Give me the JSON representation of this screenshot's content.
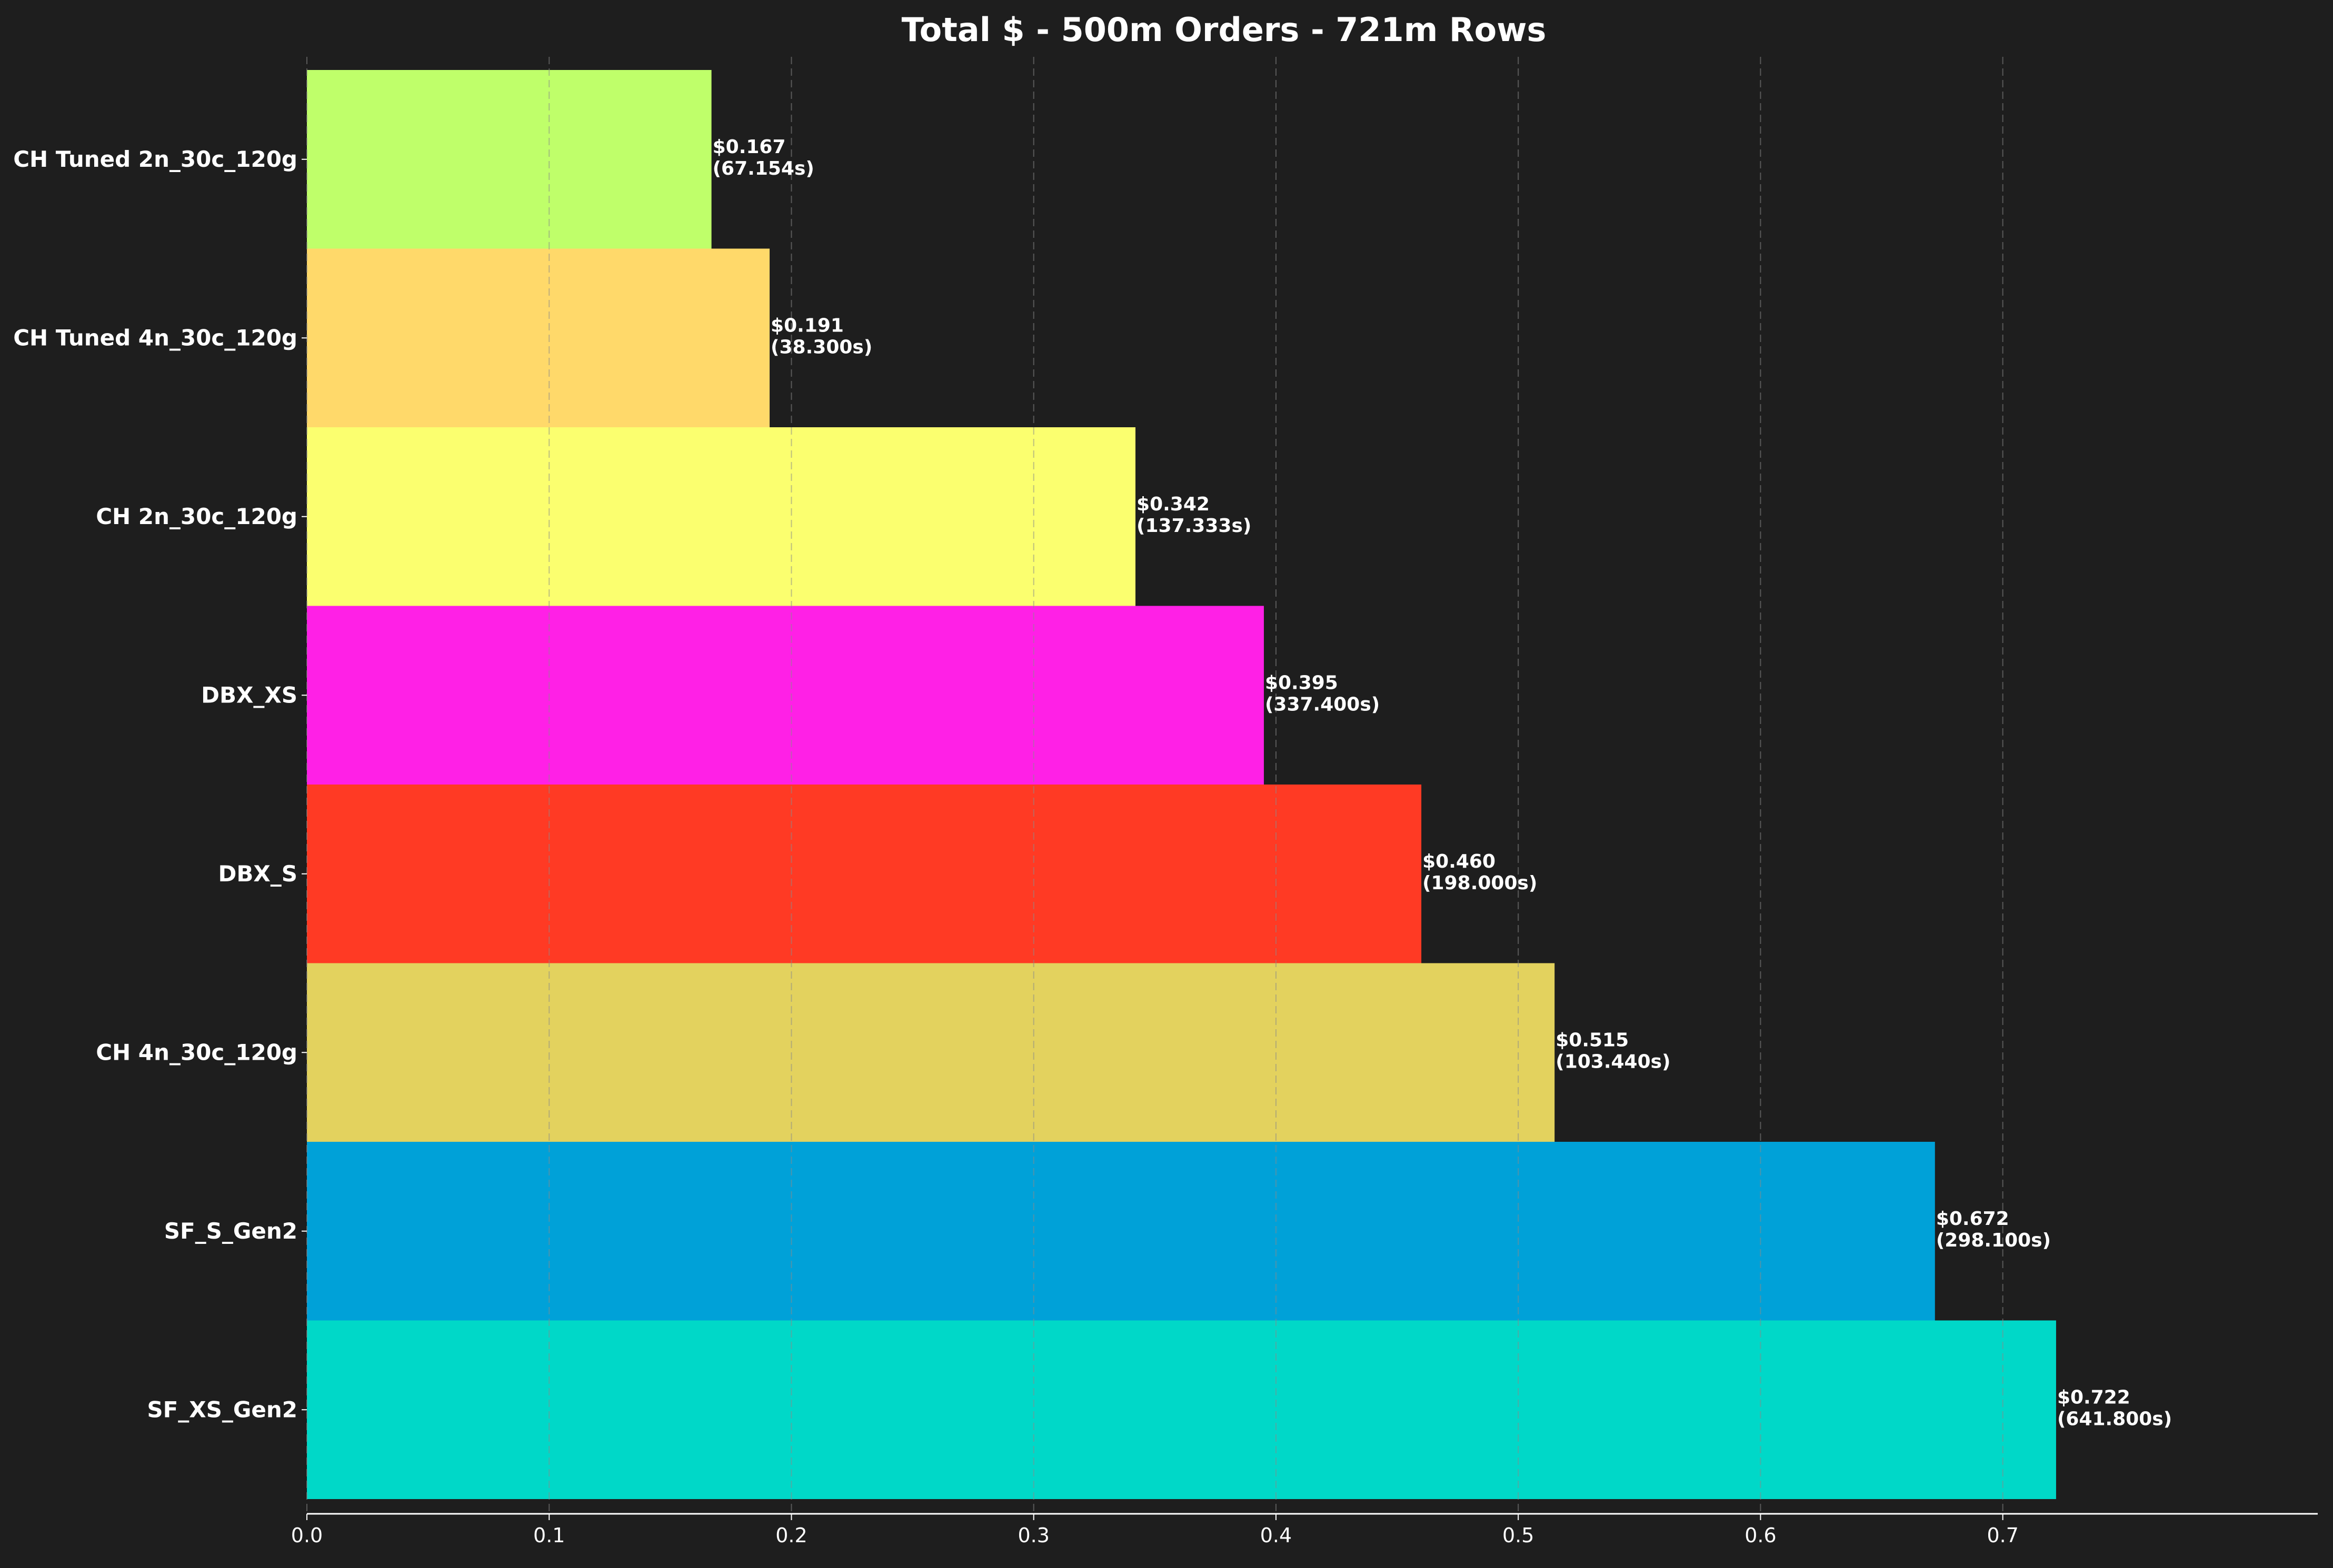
{
  "chart_data": {
    "type": "bar",
    "orientation": "horizontal",
    "title": "Total $ - 500m Orders - 721m Rows",
    "xlabel": "",
    "ylabel": "",
    "xlim": [
      0,
      0.83
    ],
    "x_ticks": [
      "0.0",
      "0.1",
      "0.2",
      "0.3",
      "0.4",
      "0.5",
      "0.6",
      "0.7"
    ],
    "x_tick_values": [
      0.0,
      0.1,
      0.2,
      0.3,
      0.4,
      0.5,
      0.6,
      0.7
    ],
    "grid": "vertical dashed",
    "background": "#1e1e1e",
    "bars": [
      {
        "category": "CH Tuned 2n_30c_120g",
        "value": 0.167,
        "label": "$0.167",
        "sublabel": "(67.154s)",
        "color": "#bfff6a"
      },
      {
        "category": "CH Tuned 4n_30c_120g",
        "value": 0.191,
        "label": "$0.191",
        "sublabel": "(38.300s)",
        "color": "#ffd96a"
      },
      {
        "category": "CH 2n_30c_120g",
        "value": 0.342,
        "label": "$0.342",
        "sublabel": "(137.333s)",
        "color": "#fbff6f"
      },
      {
        "category": "DBX_XS",
        "value": 0.395,
        "label": "$0.395",
        "sublabel": "(337.400s)",
        "color": "#ff20e6"
      },
      {
        "category": "DBX_S",
        "value": 0.46,
        "label": "$0.460",
        "sublabel": "(198.000s)",
        "color": "#ff3a24"
      },
      {
        "category": "CH 4n_30c_120g",
        "value": 0.515,
        "label": "$0.515",
        "sublabel": "(103.440s)",
        "color": "#e3d25e"
      },
      {
        "category": "SF_S_Gen2",
        "value": 0.672,
        "label": "$0.672",
        "sublabel": "(298.100s)",
        "color": "#00a1d8"
      },
      {
        "category": "SF_XS_Gen2",
        "value": 0.722,
        "label": "$0.722",
        "sublabel": "(641.800s)",
        "color": "#00d8c8"
      }
    ]
  }
}
